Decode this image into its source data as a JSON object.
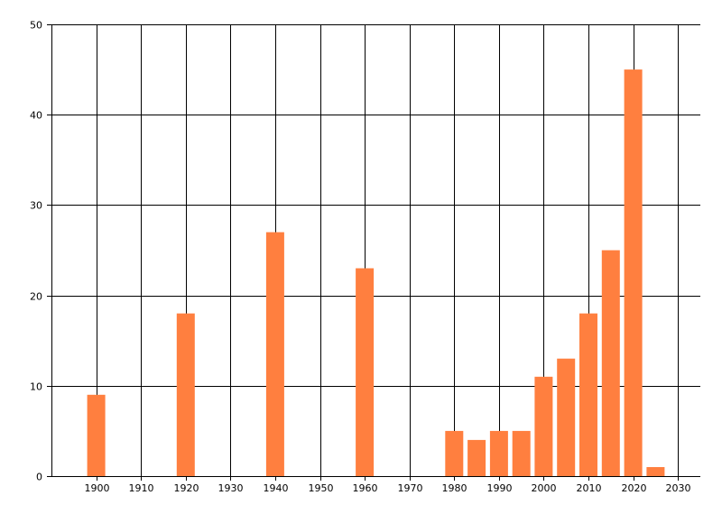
{
  "chart_data": {
    "type": "bar",
    "x": [
      1900,
      1920,
      1940,
      1960,
      1980,
      1985,
      1990,
      1995,
      2000,
      2005,
      2010,
      2015,
      2020,
      2025
    ],
    "values": [
      9,
      18,
      27,
      23,
      5,
      4,
      5,
      5,
      11,
      13,
      18,
      25,
      45,
      1
    ],
    "bar_color": "#ff7f3f",
    "title": "",
    "xlabel": "",
    "ylabel": "",
    "xlim": [
      1890,
      2035
    ],
    "ylim": [
      0,
      50
    ],
    "x_ticks": [
      1900,
      1910,
      1920,
      1930,
      1940,
      1950,
      1960,
      1970,
      1980,
      1990,
      2000,
      2010,
      2020,
      2030
    ],
    "y_ticks": [
      0,
      10,
      20,
      30,
      40,
      50
    ],
    "grid": true,
    "grid_color": "#000000",
    "legend": "none"
  }
}
